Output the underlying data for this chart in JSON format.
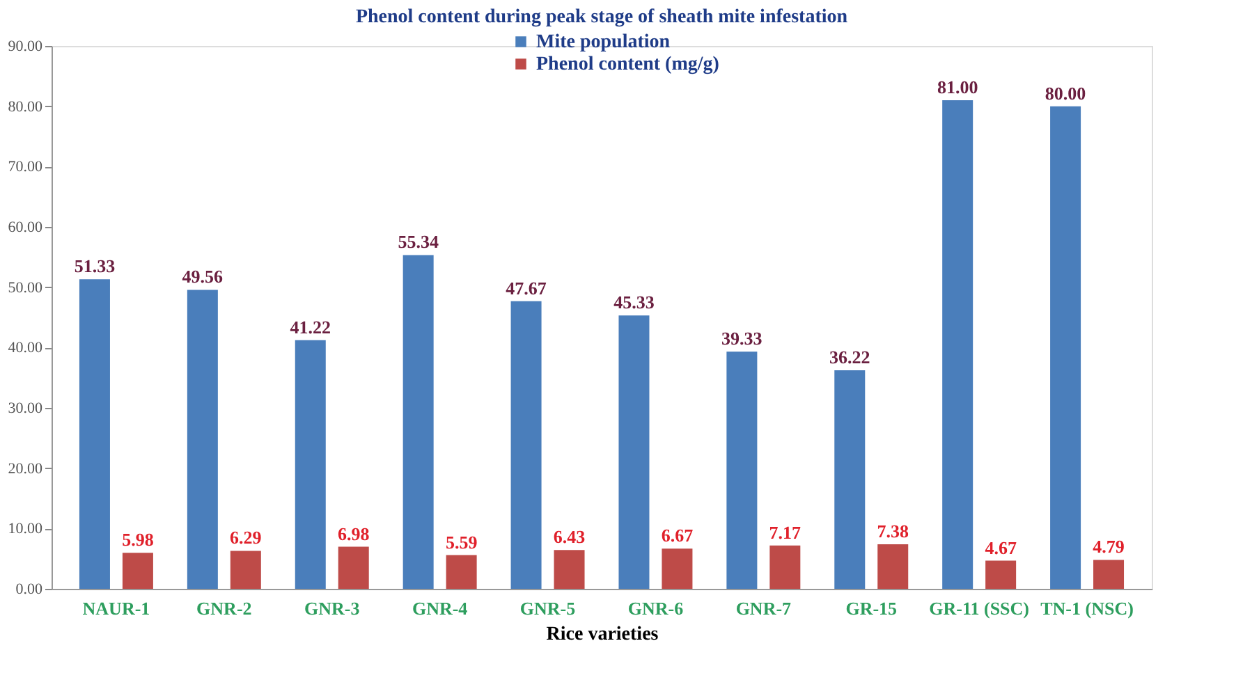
{
  "chart_data": {
    "type": "bar",
    "title": "Phenol content during peak stage of sheath mite infestation",
    "xlabel": "Rice varieties",
    "categories": [
      "NAUR-1",
      "GNR-2",
      "GNR-3",
      "GNR-4",
      "GNR-5",
      "GNR-6",
      "GNR-7",
      "GR-15",
      "GR-11 (SSC)",
      "TN-1 (NSC)"
    ],
    "series": [
      {
        "name": "Mite population",
        "color": "#4a7ebb",
        "values": [
          51.33,
          49.56,
          41.22,
          55.34,
          47.67,
          45.33,
          39.33,
          36.22,
          81.0,
          80.0
        ],
        "value_labels": [
          "51.33",
          "49.56",
          "41.22",
          "55.34",
          "47.67",
          "45.33",
          "39.33",
          "36.22",
          "81.00",
          "80.00"
        ]
      },
      {
        "name": "Phenol content (mg/g)",
        "color": "#be4b48",
        "values": [
          5.98,
          6.29,
          6.98,
          5.59,
          6.43,
          6.67,
          7.17,
          7.38,
          4.67,
          4.79
        ],
        "value_labels": [
          "5.98",
          "6.29",
          "6.98",
          "5.59",
          "6.43",
          "6.67",
          "7.17",
          "7.38",
          "4.67",
          "4.79"
        ]
      }
    ],
    "ylim": [
      0,
      90
    ],
    "yticks": [
      {
        "value": 0,
        "label": "0.00"
      },
      {
        "value": 10,
        "label": "10.00"
      },
      {
        "value": 20,
        "label": "20.00"
      },
      {
        "value": 30,
        "label": "30.00"
      },
      {
        "value": 40,
        "label": "40.00"
      },
      {
        "value": 50,
        "label": "50.00"
      },
      {
        "value": 60,
        "label": "60.00"
      },
      {
        "value": 70,
        "label": "70.00"
      },
      {
        "value": 80,
        "label": "80.00"
      },
      {
        "value": 90,
        "label": "90.00"
      }
    ],
    "legend": "top",
    "grid": false
  }
}
